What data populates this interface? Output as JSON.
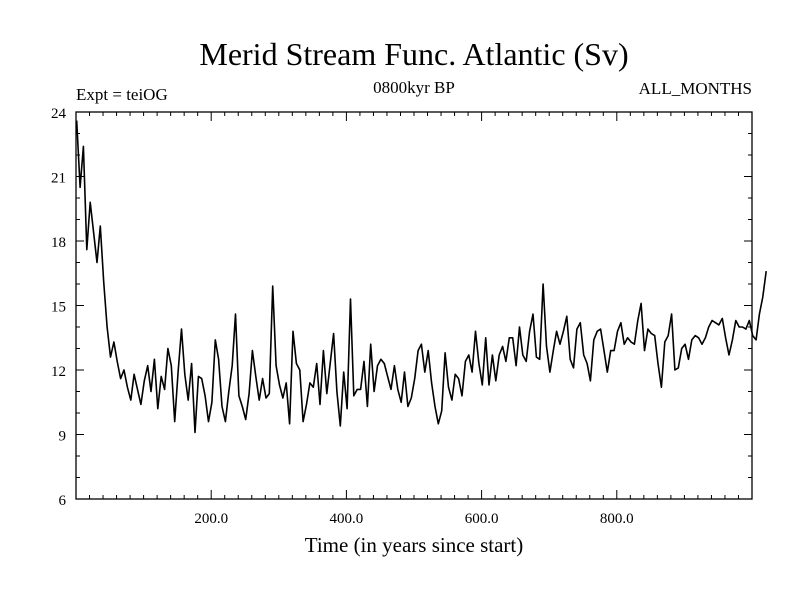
{
  "chart_data": {
    "type": "line",
    "title": "Merid Stream Func. Atlantic (Sv)",
    "subtitle_left": "Expt = teiOG",
    "subtitle_center": "0800kyr BP",
    "subtitle_right": "ALL_MONTHS",
    "xlabel": "Time (in years since start)",
    "ylabel": "",
    "xlim": [
      0,
      1000
    ],
    "ylim": [
      6,
      24
    ],
    "x_ticks": [
      200,
      400,
      600,
      800
    ],
    "x_tick_labels": [
      "200.0",
      "400.0",
      "600.0",
      "800.0"
    ],
    "y_ticks": [
      6,
      9,
      12,
      15,
      18,
      21,
      24
    ],
    "y_tick_labels": [
      "6",
      "9",
      "12",
      "15",
      "18",
      "21",
      "24"
    ],
    "grid": false,
    "series": [
      {
        "name": "Merid Stream Func. Atlantic",
        "color": "#000000",
        "x_start": 1,
        "x_step": 5,
        "values": [
          23.6,
          20.5,
          22.4,
          17.6,
          19.8,
          18.4,
          17.0,
          18.7,
          16.1,
          14.0,
          12.6,
          13.3,
          12.4,
          11.6,
          12.0,
          11.2,
          10.6,
          11.8,
          11.1,
          10.4,
          11.5,
          12.2,
          11.0,
          12.5,
          10.2,
          11.7,
          11.1,
          13.0,
          12.2,
          9.6,
          11.9,
          13.9,
          11.8,
          10.6,
          12.3,
          9.1,
          11.7,
          11.6,
          10.8,
          9.6,
          10.5,
          13.4,
          12.5,
          10.3,
          9.6,
          11.0,
          12.2,
          14.6,
          10.8,
          10.3,
          9.7,
          10.9,
          12.9,
          11.7,
          10.6,
          11.6,
          10.7,
          10.9,
          15.9,
          12.2,
          11.3,
          10.7,
          11.4,
          9.5,
          13.8,
          12.3,
          12.0,
          9.6,
          10.4,
          11.4,
          11.2,
          12.3,
          10.4,
          12.9,
          10.9,
          12.3,
          13.7,
          11.0,
          9.4,
          11.9,
          10.2,
          15.3,
          10.8,
          11.1,
          11.1,
          12.4,
          10.3,
          13.2,
          11.0,
          12.2,
          12.5,
          12.3,
          11.7,
          11.1,
          12.2,
          11.1,
          10.5,
          11.9,
          10.3,
          10.7,
          11.6,
          12.9,
          13.2,
          11.9,
          12.9,
          11.4,
          10.3,
          9.5,
          10.1,
          12.8,
          11.2,
          10.6,
          11.8,
          11.6,
          10.8,
          12.4,
          12.7,
          11.9,
          13.8,
          12.3,
          11.3,
          13.5,
          11.3,
          12.7,
          11.5,
          12.7,
          13.1,
          12.4,
          13.5,
          13.5,
          12.2,
          14.0,
          12.7,
          12.4,
          13.8,
          14.6,
          12.6,
          12.5,
          16.0,
          13.1,
          11.9,
          12.9,
          13.8,
          13.2,
          13.8,
          14.5,
          12.5,
          12.1,
          13.9,
          14.2,
          12.7,
          12.3,
          11.5,
          13.4,
          13.8,
          13.9,
          12.9,
          11.9,
          12.9,
          12.9,
          13.8,
          14.2,
          13.2,
          13.5,
          13.3,
          13.2,
          14.3,
          15.1,
          12.9,
          13.9,
          13.7,
          13.6,
          12.3,
          11.2,
          13.3,
          13.6,
          14.6,
          12.0,
          12.1,
          13.0,
          13.2,
          12.5,
          13.4,
          13.6,
          13.5,
          13.2,
          13.5,
          14.0,
          14.3,
          14.2,
          14.1,
          14.4,
          13.5,
          12.7,
          13.4,
          14.3,
          14.0,
          14.0,
          13.9,
          14.3,
          13.6,
          13.4,
          14.6,
          15.4,
          16.6
        ]
      }
    ]
  }
}
